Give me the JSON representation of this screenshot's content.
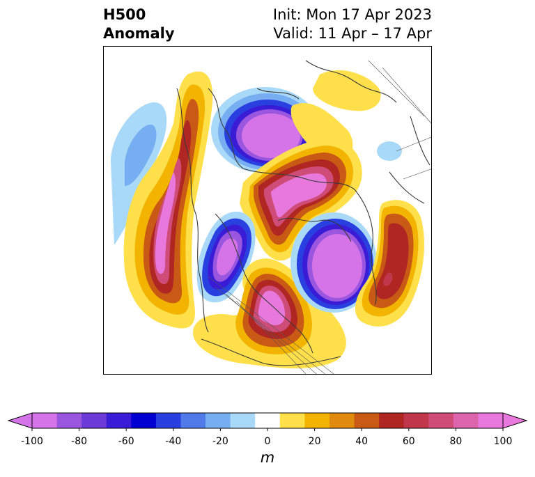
{
  "header": {
    "title_line1": "H500",
    "title_line2": "Anomaly",
    "init_text": "Init: Mon 17 Apr 2023",
    "valid_text": "Valid: 11 Apr – 17 Apr"
  },
  "colorbar": {
    "unit": "m",
    "ticks": [
      "-100",
      "-80",
      "-60",
      "-40",
      "-20",
      "0",
      "20",
      "40",
      "60",
      "80",
      "100"
    ],
    "levels": [
      -100,
      -90,
      -80,
      -70,
      -60,
      -50,
      -40,
      -30,
      -20,
      -10,
      10,
      20,
      30,
      40,
      50,
      60,
      70,
      80,
      90,
      100
    ],
    "colors": [
      "#d474e8",
      "#9a56de",
      "#6c3ad6",
      "#3a1cd6",
      "#0000d2",
      "#2a3fe0",
      "#4f7ae8",
      "#77aef2",
      "#a8d9f8",
      "#ffffff",
      "#ffe04a",
      "#f2b400",
      "#e08a10",
      "#c85a16",
      "#b02622",
      "#c0364a",
      "#d04c78",
      "#dc64ac",
      "#e878dc"
    ],
    "extend_low_color": "#d474e8",
    "extend_high_color": "#e878dc"
  },
  "map": {
    "anomalies": [
      {
        "name": "pacific-trough",
        "sign": "negative",
        "peak": -35
      },
      {
        "name": "west-coast-ridge",
        "sign": "positive",
        "peak": 100
      },
      {
        "name": "polar-trough",
        "sign": "negative",
        "peak": -100
      },
      {
        "name": "siberian-ridge",
        "sign": "positive",
        "peak": 100
      },
      {
        "name": "eurasian-trough",
        "sign": "negative",
        "peak": -100
      },
      {
        "name": "atlantic-ridge",
        "sign": "positive",
        "peak": 100
      },
      {
        "name": "east-asia-trough",
        "sign": "negative",
        "peak": -100
      },
      {
        "name": "asia-ridge",
        "sign": "positive",
        "peak": 70
      }
    ]
  }
}
